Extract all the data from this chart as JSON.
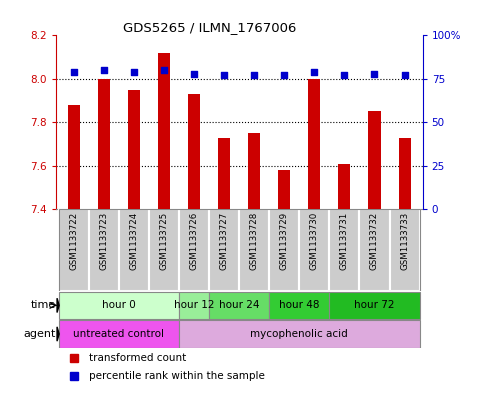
{
  "title": "GDS5265 / ILMN_1767006",
  "samples": [
    "GSM1133722",
    "GSM1133723",
    "GSM1133724",
    "GSM1133725",
    "GSM1133726",
    "GSM1133727",
    "GSM1133728",
    "GSM1133729",
    "GSM1133730",
    "GSM1133731",
    "GSM1133732",
    "GSM1133733"
  ],
  "bar_values": [
    7.88,
    8.0,
    7.95,
    8.12,
    7.93,
    7.73,
    7.75,
    7.58,
    8.0,
    7.61,
    7.85,
    7.73
  ],
  "percentile_values": [
    79,
    80,
    79,
    80,
    78,
    77,
    77,
    77,
    79,
    77,
    78,
    77
  ],
  "ylim_left": [
    7.4,
    8.2
  ],
  "ylim_right": [
    0,
    100
  ],
  "yticks_left": [
    7.4,
    7.6,
    7.8,
    8.0,
    8.2
  ],
  "yticks_right": [
    0,
    25,
    50,
    75,
    100
  ],
  "ytick_labels_right": [
    "0",
    "25",
    "50",
    "75",
    "100%"
  ],
  "bar_color": "#cc0000",
  "dot_color": "#0000cc",
  "bar_bottom": 7.4,
  "time_groups": [
    {
      "label": "hour 0",
      "start": 0,
      "end": 4,
      "color": "#ccffcc"
    },
    {
      "label": "hour 12",
      "start": 4,
      "end": 5,
      "color": "#99ee99"
    },
    {
      "label": "hour 24",
      "start": 5,
      "end": 7,
      "color": "#66dd66"
    },
    {
      "label": "hour 48",
      "start": 7,
      "end": 9,
      "color": "#33cc33"
    },
    {
      "label": "hour 72",
      "start": 9,
      "end": 12,
      "color": "#22bb22"
    }
  ],
  "agent_groups": [
    {
      "label": "untreated control",
      "start": 0,
      "end": 4,
      "color": "#ee55ee"
    },
    {
      "label": "mycophenolic acid",
      "start": 4,
      "end": 12,
      "color": "#ddaadd"
    }
  ],
  "time_row_label": "time",
  "agent_row_label": "agent",
  "legend_bar_label": "transformed count",
  "legend_dot_label": "percentile rank within the sample",
  "background_color": "#ffffff",
  "plot_bg_color": "#ffffff",
  "tick_color_left": "#cc0000",
  "tick_color_right": "#0000cc",
  "grid_color": "#000000",
  "sample_bg_color": "#cccccc",
  "border_color": "#888888"
}
